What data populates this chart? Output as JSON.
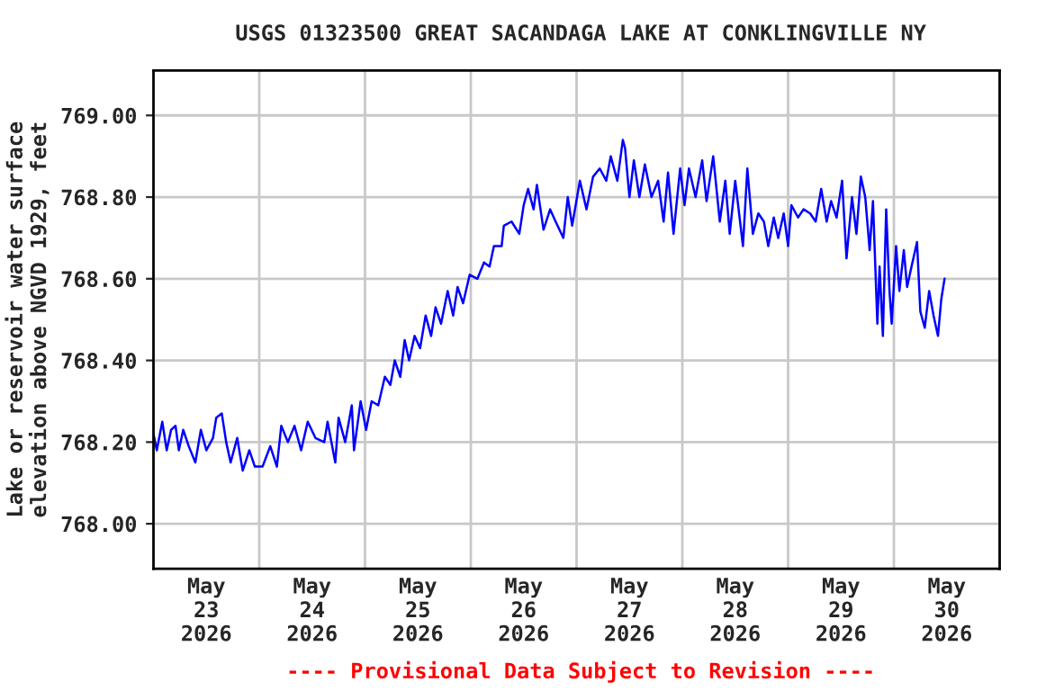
{
  "chart_data": {
    "type": "line",
    "title": "USGS 01323500 GREAT SACANDAGA LAKE AT CONKLINGVILLE NY",
    "ylabel": "Lake or reservoir water surface\nelevation above NGVD 1929, feet",
    "annotations": [
      "---- Provisional Data Subject to Revision ----"
    ],
    "x": [
      "2026-05-23T00:00",
      "2026-05-23T00:45",
      "2026-05-23T02:00",
      "2026-05-23T03:00",
      "2026-05-23T04:00",
      "2026-05-23T05:00",
      "2026-05-23T05:45",
      "2026-05-23T06:45",
      "2026-05-23T08:00",
      "2026-05-23T09:30",
      "2026-05-23T10:45",
      "2026-05-23T12:00",
      "2026-05-23T13:30",
      "2026-05-23T14:15",
      "2026-05-23T15:30",
      "2026-05-23T16:30",
      "2026-05-23T17:30",
      "2026-05-23T19:00",
      "2026-05-23T20:15",
      "2026-05-23T21:45",
      "2026-05-23T23:00",
      "2026-05-24T00:45",
      "2026-05-24T02:30",
      "2026-05-24T04:00",
      "2026-05-24T05:00",
      "2026-05-24T06:30",
      "2026-05-24T08:00",
      "2026-05-24T09:30",
      "2026-05-24T11:00",
      "2026-05-24T12:45",
      "2026-05-24T14:45",
      "2026-05-24T15:30",
      "2026-05-24T17:15",
      "2026-05-24T18:00",
      "2026-05-24T19:30",
      "2026-05-24T21:00",
      "2026-05-24T21:30",
      "2026-05-24T23:00",
      "2026-05-25T00:15",
      "2026-05-25T01:30",
      "2026-05-25T03:00",
      "2026-05-25T04:30",
      "2026-05-25T05:45",
      "2026-05-25T06:45",
      "2026-05-25T08:00",
      "2026-05-25T09:00",
      "2026-05-25T10:00",
      "2026-05-25T11:15",
      "2026-05-25T12:30",
      "2026-05-25T13:45",
      "2026-05-25T15:00",
      "2026-05-25T16:00",
      "2026-05-25T17:15",
      "2026-05-25T18:45",
      "2026-05-25T20:00",
      "2026-05-25T21:00",
      "2026-05-25T22:15",
      "2026-05-25T23:45",
      "2026-05-26T01:30",
      "2026-05-26T03:00",
      "2026-05-26T04:15",
      "2026-05-26T05:15",
      "2026-05-26T07:00",
      "2026-05-26T07:30",
      "2026-05-26T09:15",
      "2026-05-26T11:00",
      "2026-05-26T12:00",
      "2026-05-26T13:00",
      "2026-05-26T14:15",
      "2026-05-26T15:00",
      "2026-05-26T16:30",
      "2026-05-26T18:00",
      "2026-05-26T19:15",
      "2026-05-26T21:00",
      "2026-05-26T22:00",
      "2026-05-26T23:00",
      "2026-05-27T00:45",
      "2026-05-27T02:15",
      "2026-05-27T03:45",
      "2026-05-27T05:15",
      "2026-05-27T06:45",
      "2026-05-27T07:45",
      "2026-05-27T09:15",
      "2026-05-27T10:30",
      "2026-05-27T11:00",
      "2026-05-27T12:00",
      "2026-05-27T13:00",
      "2026-05-27T14:15",
      "2026-05-27T15:30",
      "2026-05-27T17:00",
      "2026-05-27T18:30",
      "2026-05-27T19:45",
      "2026-05-27T20:45",
      "2026-05-27T22:00",
      "2026-05-27T23:30",
      "2026-05-28T00:30",
      "2026-05-28T01:30",
      "2026-05-28T03:00",
      "2026-05-28T04:30",
      "2026-05-28T05:30",
      "2026-05-28T07:00",
      "2026-05-28T08:30",
      "2026-05-28T09:45",
      "2026-05-28T10:45",
      "2026-05-28T12:00",
      "2026-05-28T13:45",
      "2026-05-28T14:45",
      "2026-05-28T16:00",
      "2026-05-28T17:15",
      "2026-05-28T18:30",
      "2026-05-28T19:30",
      "2026-05-28T20:45",
      "2026-05-28T21:45",
      "2026-05-28T23:00",
      "2026-05-29T00:00",
      "2026-05-29T00:45",
      "2026-05-29T02:15",
      "2026-05-29T03:30",
      "2026-05-29T05:00",
      "2026-05-29T06:15",
      "2026-05-29T07:30",
      "2026-05-29T08:45",
      "2026-05-29T09:45",
      "2026-05-29T11:00",
      "2026-05-29T12:15",
      "2026-05-29T13:15",
      "2026-05-29T14:30",
      "2026-05-29T15:30",
      "2026-05-29T16:30",
      "2026-05-29T17:30",
      "2026-05-29T18:30",
      "2026-05-29T19:15",
      "2026-05-29T20:15",
      "2026-05-29T20:45",
      "2026-05-29T21:30",
      "2026-05-29T22:15",
      "2026-05-29T23:00",
      "2026-05-29T23:30",
      "2026-05-30T00:30",
      "2026-05-30T01:15",
      "2026-05-30T02:15",
      "2026-05-30T03:00",
      "2026-05-30T04:00",
      "2026-05-30T05:15",
      "2026-05-30T06:00",
      "2026-05-30T07:00",
      "2026-05-30T08:00",
      "2026-05-30T09:00",
      "2026-05-30T10:00",
      "2026-05-30T10:45",
      "2026-05-30T11:30"
    ],
    "series": [
      {
        "color": "#0000ff",
        "values": [
          768.22,
          768.18,
          768.25,
          768.18,
          768.23,
          768.24,
          768.18,
          768.23,
          768.19,
          768.15,
          768.23,
          768.18,
          768.21,
          768.26,
          768.27,
          768.2,
          768.15,
          768.21,
          768.13,
          768.18,
          768.14,
          768.14,
          768.19,
          768.14,
          768.24,
          768.2,
          768.24,
          768.18,
          768.25,
          768.21,
          768.2,
          768.25,
          768.15,
          768.26,
          768.2,
          768.29,
          768.18,
          768.3,
          768.23,
          768.3,
          768.29,
          768.36,
          768.34,
          768.4,
          768.36,
          768.45,
          768.4,
          768.46,
          768.43,
          768.51,
          768.46,
          768.53,
          768.49,
          768.57,
          768.51,
          768.58,
          768.54,
          768.61,
          768.6,
          768.64,
          768.63,
          768.68,
          768.68,
          768.73,
          768.74,
          768.71,
          768.78,
          768.82,
          768.77,
          768.83,
          768.72,
          768.77,
          768.74,
          768.7,
          768.8,
          768.73,
          768.84,
          768.77,
          768.85,
          768.87,
          768.84,
          768.9,
          768.84,
          768.94,
          768.92,
          768.8,
          768.89,
          768.8,
          768.88,
          768.8,
          768.84,
          768.74,
          768.86,
          768.71,
          768.87,
          768.78,
          768.87,
          768.8,
          768.89,
          768.79,
          768.9,
          768.74,
          768.84,
          768.71,
          768.84,
          768.68,
          768.87,
          768.71,
          768.76,
          768.74,
          768.68,
          768.75,
          768.7,
          768.76,
          768.68,
          768.78,
          768.75,
          768.77,
          768.76,
          768.74,
          768.82,
          768.74,
          768.79,
          768.75,
          768.84,
          768.65,
          768.8,
          768.71,
          768.85,
          768.8,
          768.67,
          768.79,
          768.49,
          768.63,
          768.46,
          768.77,
          768.57,
          768.49,
          768.68,
          768.57,
          768.67,
          768.58,
          768.63,
          768.69,
          768.52,
          768.48,
          768.57,
          768.51,
          768.46,
          768.55,
          768.6
        ]
      }
    ],
    "xlim": [
      "2026-05-23",
      "2026-05-31"
    ],
    "xticks": [
      {
        "value": "2026-05-23",
        "label": null
      },
      {
        "value": "2026-05-23T12:00",
        "label": "May\n23\n2026"
      },
      {
        "value": "2026-05-24",
        "label": null
      },
      {
        "value": "2026-05-24T12:00",
        "label": "May\n24\n2026"
      },
      {
        "value": "2026-05-25",
        "label": null
      },
      {
        "value": "2026-05-25T12:00",
        "label": "May\n25\n2026"
      },
      {
        "value": "2026-05-26",
        "label": null
      },
      {
        "value": "2026-05-26T12:00",
        "label": "May\n26\n2026"
      },
      {
        "value": "2026-05-27",
        "label": null
      },
      {
        "value": "2026-05-27T12:00",
        "label": "May\n27\n2026"
      },
      {
        "value": "2026-05-28",
        "label": null
      },
      {
        "value": "2026-05-28T12:00",
        "label": "May\n28\n2026"
      },
      {
        "value": "2026-05-29",
        "label": null
      },
      {
        "value": "2026-05-29T12:00",
        "label": "May\n29\n2026"
      },
      {
        "value": "2026-05-30",
        "label": null
      },
      {
        "value": "2026-05-30T12:00",
        "label": "May\n30\n2026"
      },
      {
        "value": "2026-05-31",
        "label": null
      }
    ],
    "ylim": [
      767.89,
      769.11
    ],
    "yticks": [
      {
        "value": 768,
        "label": "768.00"
      },
      {
        "value": 768.2,
        "label": "768.20"
      },
      {
        "value": 768.4,
        "label": "768.40"
      },
      {
        "value": 768.6,
        "label": "768.60"
      },
      {
        "value": 768.8,
        "label": "768.80"
      },
      {
        "value": 769,
        "label": "769.00"
      }
    ],
    "grid": true,
    "legend": false,
    "marker": "none",
    "line_style": "solid"
  }
}
